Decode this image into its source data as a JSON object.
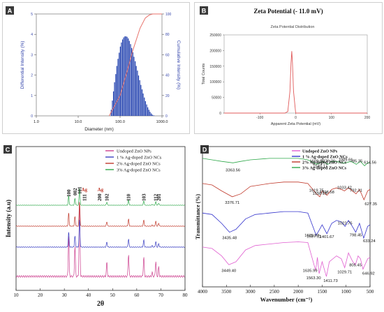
{
  "chart_data": [
    {
      "panel": "A",
      "type": "bar",
      "title": "",
      "xlabel": "Diameter (nm)",
      "ylabel": "Differential Intensity (%)",
      "y2label": "Cumulative Intensity (%)",
      "xscale": "log",
      "xlim": [
        1.0,
        1000.0
      ],
      "ylim": [
        0,
        5
      ],
      "y2lim": [
        0,
        100
      ],
      "xticks": [
        "1.0",
        "10.0",
        "100.0",
        "1000.0"
      ],
      "yticks": [
        "0",
        "1",
        "2",
        "3",
        "4",
        "5"
      ],
      "y2ticks": [
        "0",
        "20",
        "40",
        "60",
        "80",
        "100"
      ],
      "x": [
        60,
        64,
        68,
        72,
        77,
        82,
        87,
        93,
        99,
        105,
        112,
        119,
        127,
        135,
        144,
        153,
        163,
        174,
        185,
        197,
        210,
        224,
        238,
        254,
        270,
        288,
        307,
        327,
        348,
        371,
        395,
        421,
        448,
        477,
        508,
        541,
        577,
        614
      ],
      "values": [
        0.3,
        0.75,
        1.2,
        1.65,
        2.05,
        2.45,
        2.8,
        3.1,
        3.4,
        3.6,
        3.75,
        3.85,
        3.9,
        3.9,
        3.88,
        3.8,
        3.68,
        3.52,
        3.33,
        3.12,
        2.9,
        2.68,
        2.45,
        2.22,
        1.98,
        1.75,
        1.52,
        1.3,
        1.1,
        0.9,
        0.72,
        0.56,
        0.42,
        0.3,
        0.2,
        0.12,
        0.06,
        0.02
      ],
      "cumulative_series": {
        "name": "Cumulative Intensity",
        "x": [
          55,
          100,
          150,
          200,
          300,
          400,
          500,
          600,
          1000
        ],
        "values": [
          0,
          20,
          45,
          64,
          86,
          96,
          99,
          100,
          100
        ]
      },
      "colors": {
        "bars": "#1f3fae",
        "cumulative": "#e8726b"
      }
    },
    {
      "panel": "B",
      "type": "line",
      "title": "Zeta Potential  (- 11.0 mV)",
      "subtitle": "Zeta Potential Distribution",
      "xlabel": "Apparent Zeta Potential (mV)",
      "ylabel": "Total Counts",
      "xlim": [
        -200,
        200
      ],
      "ylim": [
        0,
        250000
      ],
      "xticks": [
        "-100",
        "0",
        "100",
        "200"
      ],
      "yticks": [
        "0",
        "50000",
        "100000",
        "150000",
        "200000",
        "250000"
      ],
      "series": [
        {
          "x": [
            -200,
            -30,
            -22,
            -16,
            -13,
            -11,
            -9,
            -6,
            0,
            200
          ],
          "values": [
            0,
            0,
            5000,
            70000,
            160000,
            198000,
            160000,
            70000,
            0,
            0
          ]
        }
      ],
      "colors": {
        "line": "#e05a5a"
      }
    },
    {
      "panel": "C",
      "type": "line",
      "xlabel": "2θ",
      "ylabel": "Intensity (a.u)",
      "xlim": [
        10,
        80
      ],
      "xticks": [
        "10",
        "20",
        "30",
        "40",
        "50",
        "60",
        "70",
        "80"
      ],
      "peak_labels": [
        {
          "text": "100",
          "x": 31.8
        },
        {
          "text": "002",
          "x": 34.4
        },
        {
          "text": "101",
          "x": 36.3
        },
        {
          "text": "Ag",
          "x": 38.2
        },
        {
          "text": "111",
          "x": 38.4
        },
        {
          "text": "Ag",
          "x": 44.3
        },
        {
          "text": "200",
          "x": 44.5
        },
        {
          "text": "102",
          "x": 47.6
        },
        {
          "text": "110",
          "x": 56.6
        },
        {
          "text": "103",
          "x": 62.9
        },
        {
          "text": "112",
          "x": 67.9
        },
        {
          "text": "201",
          "x": 69.1
        }
      ],
      "peaks": [
        {
          "x": 31.8,
          "h": 0.55
        },
        {
          "x": 34.4,
          "h": 0.4
        },
        {
          "x": 36.3,
          "h": 1.0
        },
        {
          "x": 47.6,
          "h": 0.18
        },
        {
          "x": 56.6,
          "h": 0.3
        },
        {
          "x": 62.9,
          "h": 0.25
        },
        {
          "x": 66.4,
          "h": 0.05
        },
        {
          "x": 67.9,
          "h": 0.2
        },
        {
          "x": 69.1,
          "h": 0.12
        }
      ],
      "series": [
        {
          "name": "Undoped ZnO NPs",
          "color": "#cc3f8e",
          "peak_scale": 1.0
        },
        {
          "name": "1 % Ag-doped ZnO NCs",
          "color": "#3a3fc2",
          "peak_scale": 0.45
        },
        {
          "name": "2% Ag-doped ZnO NCs",
          "color": "#c0392b",
          "peak_scale": 0.4
        },
        {
          "name": "3% Ag-doped ZnO NCs",
          "color": "#2ea84a",
          "peak_scale": 0.3
        }
      ]
    },
    {
      "panel": "D",
      "type": "line",
      "xlabel": "Wavenumber (cm⁻¹)",
      "ylabel": "Transmittance (%)",
      "xlim": [
        4000,
        500
      ],
      "xticks": [
        "4000",
        "3500",
        "3000",
        "2500",
        "2000",
        "1500",
        "1000",
        "500"
      ],
      "series": [
        {
          "name": "Undoped ZnO NPs",
          "color": "#e05ed0",
          "x": [
            4000,
            3800,
            3600,
            3449.4,
            3300,
            3100,
            2900,
            2600,
            2300,
            2000,
            1800,
            1635.99,
            1600,
            1563.3,
            1500,
            1411.73,
            1350,
            1200,
            1100,
            1029.71,
            950,
            860,
            805.45,
            750,
            700,
            646.92,
            550,
            500
          ],
          "values": [
            32,
            31,
            26,
            20,
            22,
            30,
            33,
            34,
            35,
            35.5,
            35,
            16,
            25,
            14,
            22,
            12,
            22,
            26,
            24,
            18,
            28,
            22,
            20,
            26,
            24,
            17,
            24,
            25
          ]
        },
        {
          "name": "1 % Ag-doped ZnO NCs",
          "color": "#3333cc",
          "x": [
            4000,
            3800,
            3600,
            3435.48,
            3300,
            3100,
            2900,
            2600,
            2300,
            2000,
            1800,
            1625.93,
            1587.11,
            1500,
            1401.67,
            1300,
            1200,
            1100,
            1022.75,
            950,
            870,
            798.45,
            720,
            633.24,
            550,
            500
          ],
          "values": [
            55,
            54,
            48,
            42,
            44,
            51,
            54,
            55,
            56,
            56,
            55,
            40,
            42,
            47,
            41,
            48,
            50,
            49,
            46,
            50,
            46,
            42,
            48,
            38,
            46,
            47
          ]
        },
        {
          "name": "2% Ag-doped ZnO NCs",
          "color": "#c0392b",
          "x": [
            4000,
            3800,
            3600,
            3376.71,
            3200,
            3000,
            2600,
            2300,
            2000,
            1800,
            1619.75,
            1550.15,
            1500,
            1398.58,
            1300,
            1200,
            1100,
            1033.42,
            950,
            870,
            792.31,
            720,
            627.35,
            550,
            500
          ],
          "values": [
            75,
            74,
            70,
            66,
            68,
            73,
            75,
            76,
            76,
            75,
            68,
            66,
            70,
            67,
            71,
            72,
            71,
            70,
            72,
            70,
            68,
            71,
            64,
            70,
            71
          ]
        },
        {
          "name": "3% Ag-doped ZnO NCs",
          "color": "#2ea84a",
          "x": [
            4000,
            3800,
            3600,
            3363.56,
            3200,
            3000,
            2600,
            2300,
            2000,
            1800,
            1609.65,
            1540.17,
            1500,
            1379.26,
            1300,
            1200,
            1100,
            1009.61,
            900,
            785.35,
            700,
            614.56,
            550,
            500
          ],
          "values": [
            92,
            91,
            90,
            89,
            90,
            91,
            92,
            92,
            92,
            91,
            88,
            89,
            90,
            88,
            90,
            90,
            89,
            89,
            90,
            88,
            90,
            87,
            89,
            89
          ]
        }
      ],
      "annotations": [
        {
          "text": "3363.56",
          "series": 3,
          "x": 3363.56
        },
        {
          "text": "1609.65",
          "series": 3,
          "x": 1609.65
        },
        {
          "text": "1540.17",
          "series": 3,
          "x": 1540.17
        },
        {
          "text": "1379.26",
          "series": 3,
          "x": 1379.26
        },
        {
          "text": "1009.61",
          "series": 3,
          "x": 1009.61
        },
        {
          "text": "785.35",
          "series": 3,
          "x": 785.35
        },
        {
          "text": "614.56",
          "series": 3,
          "x": 614.56
        },
        {
          "text": "3376.71",
          "series": 2,
          "x": 3376.71
        },
        {
          "text": "1619.75",
          "series": 2,
          "x": 1619.75
        },
        {
          "text": "1550.15",
          "series": 2,
          "x": 1550.15
        },
        {
          "text": "1398.58",
          "series": 2,
          "x": 1398.58
        },
        {
          "text": "1033.42",
          "series": 2,
          "x": 1033.42
        },
        {
          "text": "792.31",
          "series": 2,
          "x": 792.31
        },
        {
          "text": "627.35",
          "series": 2,
          "x": 627.35
        },
        {
          "text": "3435.48",
          "series": 1,
          "x": 3435.48
        },
        {
          "text": "1625.93",
          "series": 1,
          "x": 1625.93
        },
        {
          "text": "1587.11",
          "series": 1,
          "x": 1587.11
        },
        {
          "text": "1401.67",
          "series": 1,
          "x": 1401.67
        },
        {
          "text": "1022.75",
          "series": 1,
          "x": 1022.75
        },
        {
          "text": "798.45",
          "series": 1,
          "x": 798.45
        },
        {
          "text": "633.24",
          "series": 1,
          "x": 633.24
        },
        {
          "text": "3449.40",
          "series": 0,
          "x": 3449.4
        },
        {
          "text": "1635.99",
          "series": 0,
          "x": 1635.99
        },
        {
          "text": "1563.30",
          "series": 0,
          "x": 1563.3
        },
        {
          "text": "1411.73",
          "series": 0,
          "x": 1411.73
        },
        {
          "text": "1029.71",
          "series": 0,
          "x": 1029.71
        },
        {
          "text": "805.45",
          "series": 0,
          "x": 805.45
        },
        {
          "text": "646.92",
          "series": 0,
          "x": 646.92
        }
      ]
    }
  ]
}
